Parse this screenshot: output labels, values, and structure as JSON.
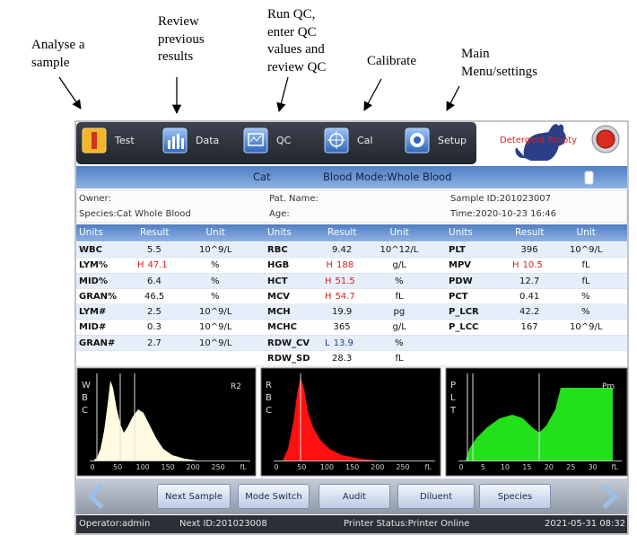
{
  "annotations": [
    {
      "lines": [
        "Analyse a",
        "sample"
      ]
    },
    {
      "lines": [
        "Review",
        "previous",
        "results"
      ]
    },
    {
      "lines": [
        "Run QC,",
        "enter QC",
        "values and",
        "review QC"
      ]
    },
    {
      "lines": [
        "Calibrate"
      ]
    },
    {
      "lines": [
        "Main",
        "Menu/settings"
      ]
    }
  ],
  "toolbar": {
    "buttons": [
      "Test",
      "Data",
      "QC",
      "Cal",
      "Setup"
    ],
    "alert": "Detergent Empty"
  },
  "mode_bar": {
    "species": "Cat",
    "mode": "Blood Mode:Whole Blood"
  },
  "info": [
    [
      "Owner:",
      "Pat. Name:",
      "Sample ID:201023007"
    ],
    [
      "Species:Cat Whole Blood",
      "Age:",
      "Time:2020-10-23 16:46"
    ]
  ],
  "table": {
    "header": [
      "Units",
      "Result",
      "Unit"
    ],
    "flag_colors": {
      "H": "#d81e1e",
      "L": "#1e3c96"
    },
    "rows": [
      [
        {
          "param": "WBC",
          "result": "5.5",
          "unit": "10^9/L"
        },
        {
          "param": "RBC",
          "result": "9.42",
          "unit": "10^12/L"
        },
        {
          "param": "PLT",
          "result": "396",
          "unit": "10^9/L"
        }
      ],
      [
        {
          "param": "LYM%",
          "flag": "H",
          "result": "47.1",
          "unit": "%"
        },
        {
          "param": "HGB",
          "flag": "H",
          "result": "188",
          "unit": "g/L"
        },
        {
          "param": "MPV",
          "flag": "H",
          "result": "10.5",
          "unit": "fL"
        }
      ],
      [
        {
          "param": "MID%",
          "result": "6.4",
          "unit": "%"
        },
        {
          "param": "HCT",
          "flag": "H",
          "result": "51.5",
          "unit": "%"
        },
        {
          "param": "PDW",
          "result": "12.7",
          "unit": "fL"
        }
      ],
      [
        {
          "param": "GRAN%",
          "result": "46.5",
          "unit": "%"
        },
        {
          "param": "MCV",
          "flag": "H",
          "result": "54.7",
          "unit": "fL"
        },
        {
          "param": "PCT",
          "result": "0.41",
          "unit": "%"
        }
      ],
      [
        {
          "param": "LYM#",
          "result": "2.5",
          "unit": "10^9/L"
        },
        {
          "param": "MCH",
          "result": "19.9",
          "unit": "pg"
        },
        {
          "param": "P_LCR",
          "result": "42.2",
          "unit": "%"
        }
      ],
      [
        {
          "param": "MID#",
          "result": "0.3",
          "unit": "10^9/L"
        },
        {
          "param": "MCHC",
          "result": "365",
          "unit": "g/L"
        },
        {
          "param": "P_LCC",
          "result": "167",
          "unit": "10^9/L"
        }
      ],
      [
        {
          "param": "GRAN#",
          "result": "2.7",
          "unit": "10^9/L"
        },
        {
          "param": "RDW_CV",
          "flag": "L",
          "result": "13.9",
          "unit": "%"
        },
        null
      ],
      [
        null,
        {
          "param": "RDW_SD",
          "result": "28.3",
          "unit": "fL"
        },
        null
      ]
    ]
  },
  "histograms": [
    {
      "label": [
        "W",
        "B",
        "C"
      ],
      "marker": "R2",
      "xticks": [
        "0",
        "50",
        "100",
        "150",
        "200",
        "250",
        "fL"
      ]
    },
    {
      "label": [
        "R",
        "B",
        "C"
      ],
      "xticks": [
        "0",
        "50",
        "100",
        "150",
        "200",
        "250",
        "fL"
      ]
    },
    {
      "label": [
        "P",
        "L",
        "T"
      ],
      "marker": "Pm",
      "xticks": [
        "0",
        "5",
        "10",
        "15",
        "20",
        "25",
        "30",
        "fL"
      ]
    }
  ],
  "actions": [
    "Next Sample",
    "Mode Switch",
    "Audit",
    "Diluent",
    "Species"
  ],
  "status": [
    "Operator:admin",
    "Next ID:201023008",
    "Printer Status:Printer Online",
    "2021-05-31 08:32"
  ]
}
